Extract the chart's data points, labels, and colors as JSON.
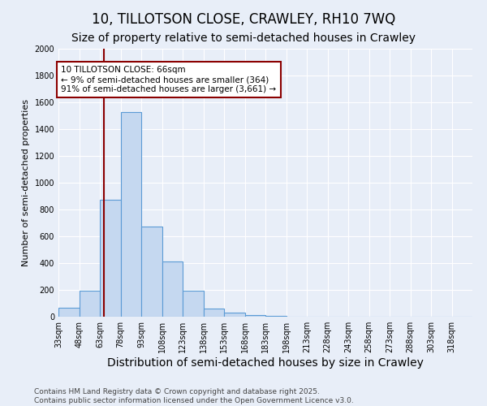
{
  "title1": "10, TILLOTSON CLOSE, CRAWLEY, RH10 7WQ",
  "title2": "Size of property relative to semi-detached houses in Crawley",
  "xlabel": "Distribution of semi-detached houses by size in Crawley",
  "ylabel": "Number of semi-detached properties",
  "bin_edges": [
    33,
    48,
    63,
    78,
    93,
    108,
    123,
    138,
    153,
    168,
    183,
    198,
    213,
    228,
    243,
    258,
    273,
    288,
    303,
    318,
    333
  ],
  "bar_heights": [
    65,
    195,
    875,
    1525,
    670,
    415,
    195,
    60,
    30,
    15,
    5,
    0,
    0,
    0,
    0,
    0,
    0,
    0,
    0,
    0
  ],
  "bar_color": "#c5d8f0",
  "bar_edge_color": "#5b9bd5",
  "property_size": 66,
  "property_line_color": "#8b0000",
  "annotation_line1": "10 TILLOTSON CLOSE: 66sqm",
  "annotation_line2": "← 9% of semi-detached houses are smaller (364)",
  "annotation_line3": "91% of semi-detached houses are larger (3,661) →",
  "annotation_box_color": "#ffffff",
  "annotation_box_edge_color": "#8b0000",
  "ylim": [
    0,
    2000
  ],
  "yticks": [
    0,
    200,
    400,
    600,
    800,
    1000,
    1200,
    1400,
    1600,
    1800,
    2000
  ],
  "background_color": "#e8eef8",
  "grid_color": "#ffffff",
  "footer_text": "Contains HM Land Registry data © Crown copyright and database right 2025.\nContains public sector information licensed under the Open Government Licence v3.0.",
  "title1_fontsize": 12,
  "title2_fontsize": 10,
  "xlabel_fontsize": 10,
  "ylabel_fontsize": 8,
  "tick_fontsize": 7,
  "annotation_fontsize": 7.5,
  "footer_fontsize": 6.5
}
